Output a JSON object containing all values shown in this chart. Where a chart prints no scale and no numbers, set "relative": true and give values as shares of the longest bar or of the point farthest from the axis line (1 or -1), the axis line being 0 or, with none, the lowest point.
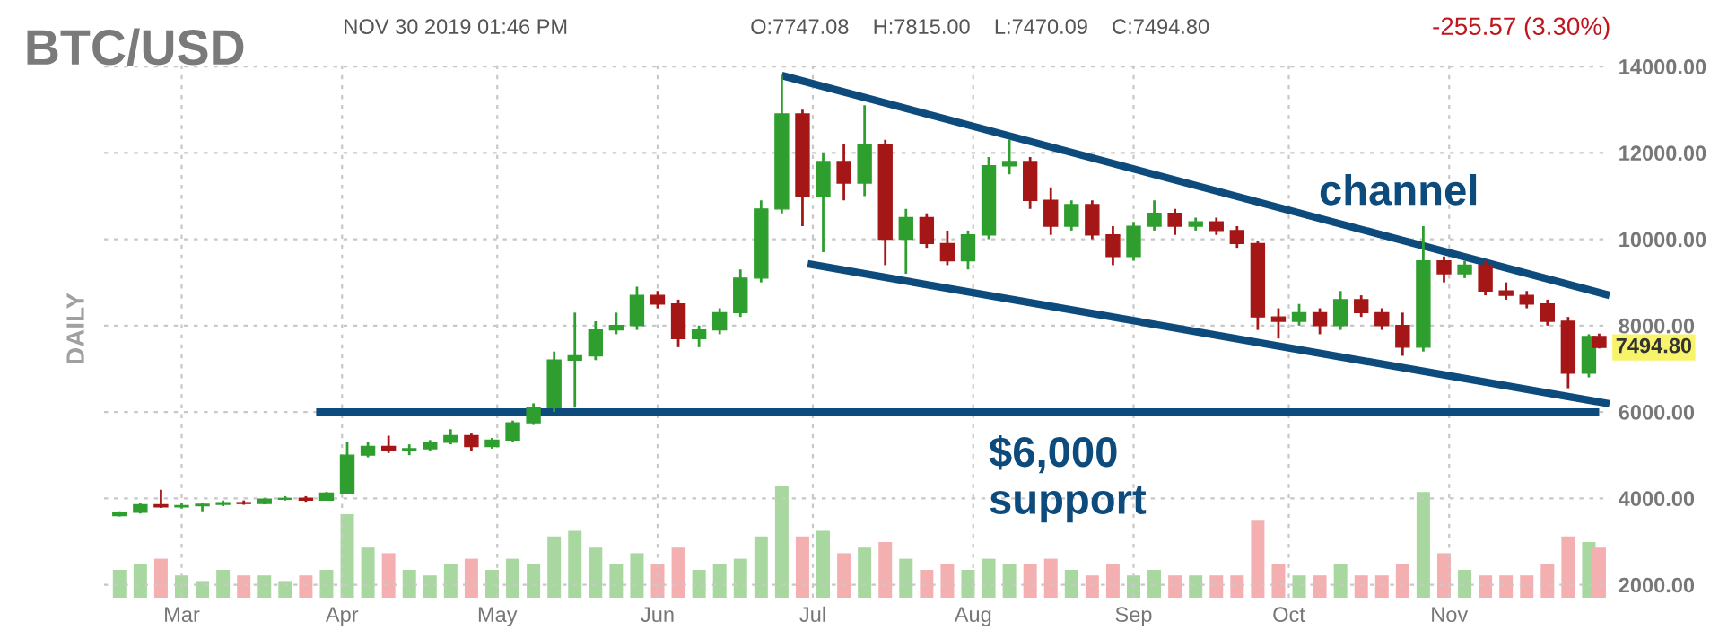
{
  "chart_data": [
    {
      "type": "candlestick",
      "title": "BTC/USD",
      "ylabel": "DAILY",
      "annotations": [
        "NOV 30 2019 01:46 PM",
        "O:7747.08    H:7815.00    L:7470.09    C:7494.80",
        "-255.57 (3.30%)",
        "channel",
        "$6,000\nsupport",
        {
          "text": "7494.80",
          "x": "2019-11-30",
          "y": 7494.8
        }
      ],
      "xlim": [
        "2019-02-14",
        "2019-12-02"
      ],
      "xticks": [
        {
          "value": "2019-03-01",
          "label": "Mar"
        },
        {
          "value": "2019-04-01",
          "label": "Apr"
        },
        {
          "value": "2019-05-01",
          "label": "May"
        },
        {
          "value": "2019-06-01",
          "label": "Jun"
        },
        {
          "value": "2019-07-01",
          "label": "Jul"
        },
        {
          "value": "2019-08-01",
          "label": "Aug"
        },
        {
          "value": "2019-09-01",
          "label": "Sep"
        },
        {
          "value": "2019-10-01",
          "label": "Oct"
        },
        {
          "value": "2019-11-01",
          "label": "Nov"
        }
      ],
      "ylim": [
        1700,
        14150
      ],
      "yticks": [
        {
          "value": 2000,
          "label": "2000.00"
        },
        {
          "value": 4000,
          "label": "4000.00"
        },
        {
          "value": 6000,
          "label": "6000.00"
        },
        {
          "value": 8000,
          "label": "8000.00"
        },
        {
          "value": 10000,
          "label": "10000.00"
        },
        {
          "value": 12000,
          "label": "12000.00"
        },
        {
          "value": 14000,
          "label": "14000.00"
        }
      ],
      "grid": true,
      "series": [
        {
          "type": "candlestick",
          "x": [
            "2019-02-17",
            "2019-02-21",
            "2019-02-25",
            "2019-03-01",
            "2019-03-05",
            "2019-03-09",
            "2019-03-13",
            "2019-03-17",
            "2019-03-21",
            "2019-03-25",
            "2019-03-29",
            "2019-04-02",
            "2019-04-06",
            "2019-04-10",
            "2019-04-14",
            "2019-04-18",
            "2019-04-22",
            "2019-04-26",
            "2019-04-30",
            "2019-05-04",
            "2019-05-08",
            "2019-05-12",
            "2019-05-16",
            "2019-05-20",
            "2019-05-24",
            "2019-05-28",
            "2019-06-01",
            "2019-06-05",
            "2019-06-09",
            "2019-06-13",
            "2019-06-17",
            "2019-06-21",
            "2019-06-25",
            "2019-06-29",
            "2019-07-03",
            "2019-07-07",
            "2019-07-11",
            "2019-07-15",
            "2019-07-19",
            "2019-07-23",
            "2019-07-27",
            "2019-07-31",
            "2019-08-04",
            "2019-08-08",
            "2019-08-12",
            "2019-08-16",
            "2019-08-20",
            "2019-08-24",
            "2019-08-28",
            "2019-09-01",
            "2019-09-05",
            "2019-09-09",
            "2019-09-13",
            "2019-09-17",
            "2019-09-21",
            "2019-09-25",
            "2019-09-29",
            "2019-10-03",
            "2019-10-07",
            "2019-10-11",
            "2019-10-15",
            "2019-10-19",
            "2019-10-23",
            "2019-10-27",
            "2019-10-31",
            "2019-11-04",
            "2019-11-08",
            "2019-11-12",
            "2019-11-16",
            "2019-11-20",
            "2019-11-24",
            "2019-11-28",
            "2019-11-30"
          ],
          "ohlc": [
            [
              3600,
              3700,
              3580,
              3680
            ],
            [
              3680,
              3900,
              3650,
              3850
            ],
            [
              3850,
              4200,
              3780,
              3800
            ],
            [
              3800,
              3880,
              3760,
              3830
            ],
            [
              3830,
              3900,
              3700,
              3860
            ],
            [
              3860,
              3950,
              3820,
              3900
            ],
            [
              3900,
              3950,
              3850,
              3880
            ],
            [
              3880,
              4000,
              3860,
              3980
            ],
            [
              3980,
              4050,
              3950,
              4000
            ],
            [
              4000,
              4050,
              3920,
              3960
            ],
            [
              3960,
              4150,
              3950,
              4120
            ],
            [
              4120,
              5300,
              4100,
              5000
            ],
            [
              5000,
              5300,
              4950,
              5200
            ],
            [
              5200,
              5450,
              5050,
              5100
            ],
            [
              5100,
              5250,
              5000,
              5150
            ],
            [
              5150,
              5350,
              5100,
              5300
            ],
            [
              5300,
              5600,
              5250,
              5450
            ],
            [
              5450,
              5500,
              5100,
              5200
            ],
            [
              5200,
              5400,
              5150,
              5350
            ],
            [
              5350,
              5800,
              5300,
              5750
            ],
            [
              5750,
              6200,
              5700,
              6100
            ],
            [
              6100,
              7400,
              6000,
              7200
            ],
            [
              7200,
              8300,
              6100,
              7300
            ],
            [
              7300,
              8100,
              7200,
              7900
            ],
            [
              7900,
              8300,
              7800,
              8000
            ],
            [
              8000,
              8900,
              7900,
              8700
            ],
            [
              8700,
              8800,
              8400,
              8500
            ],
            [
              8500,
              8600,
              7500,
              7700
            ],
            [
              7700,
              8000,
              7500,
              7900
            ],
            [
              7900,
              8400,
              7800,
              8300
            ],
            [
              8300,
              9300,
              8200,
              9100
            ],
            [
              9100,
              10900,
              9000,
              10700
            ],
            [
              10700,
              13800,
              10600,
              12900
            ],
            [
              12900,
              13000,
              10300,
              11000
            ],
            [
              11000,
              12000,
              9700,
              11800
            ],
            [
              11800,
              12200,
              10900,
              11300
            ],
            [
              11300,
              13100,
              11000,
              12200
            ],
            [
              12200,
              12300,
              9400,
              10000
            ],
            [
              10000,
              10700,
              9200,
              10500
            ],
            [
              10500,
              10600,
              9800,
              9900
            ],
            [
              9900,
              10200,
              9400,
              9500
            ],
            [
              9500,
              10200,
              9300,
              10100
            ],
            [
              10100,
              11900,
              10000,
              11700
            ],
            [
              11700,
              12300,
              11500,
              11800
            ],
            [
              11800,
              11900,
              10700,
              10900
            ],
            [
              10900,
              11200,
              10100,
              10300
            ],
            [
              10300,
              10900,
              10200,
              10800
            ],
            [
              10800,
              10900,
              10000,
              10100
            ],
            [
              10100,
              10300,
              9400,
              9600
            ],
            [
              9600,
              10400,
              9500,
              10300
            ],
            [
              10300,
              10900,
              10200,
              10600
            ],
            [
              10600,
              10700,
              10100,
              10300
            ],
            [
              10300,
              10500,
              10200,
              10400
            ],
            [
              10400,
              10500,
              10100,
              10200
            ],
            [
              10200,
              10300,
              9800,
              9900
            ],
            [
              9900,
              9950,
              7900,
              8200
            ],
            [
              8200,
              8400,
              7700,
              8100
            ],
            [
              8100,
              8500,
              8000,
              8300
            ],
            [
              8300,
              8400,
              7800,
              8000
            ],
            [
              8000,
              8800,
              7900,
              8600
            ],
            [
              8600,
              8700,
              8200,
              8300
            ],
            [
              8300,
              8400,
              7900,
              8000
            ],
            [
              8000,
              8300,
              7300,
              7500
            ],
            [
              7500,
              10300,
              7400,
              9500
            ],
            [
              9500,
              9600,
              9000,
              9200
            ],
            [
              9200,
              9500,
              9100,
              9400
            ],
            [
              9400,
              9500,
              8700,
              8800
            ],
            [
              8800,
              9000,
              8600,
              8700
            ],
            [
              8700,
              8800,
              8400,
              8500
            ],
            [
              8500,
              8600,
              8000,
              8100
            ],
            [
              8100,
              8200,
              6550,
              6900
            ],
            [
              6900,
              7800,
              6800,
              7747.08
            ],
            [
              7747.08,
              7815.0,
              7470.09,
              7494.8
            ]
          ],
          "colors": [
            "#2e9f2e",
            "#2e9f2e",
            "#a51717",
            "#2e9f2e",
            "#2e9f2e",
            "#2e9f2e",
            "#a51717",
            "#2e9f2e",
            "#2e9f2e",
            "#a51717",
            "#2e9f2e",
            "#2e9f2e",
            "#2e9f2e",
            "#a51717",
            "#2e9f2e",
            "#2e9f2e",
            "#2e9f2e",
            "#a51717",
            "#2e9f2e",
            "#2e9f2e",
            "#2e9f2e",
            "#2e9f2e",
            "#2e9f2e",
            "#2e9f2e",
            "#2e9f2e",
            "#2e9f2e",
            "#a51717",
            "#a51717",
            "#2e9f2e",
            "#2e9f2e",
            "#2e9f2e",
            "#2e9f2e",
            "#2e9f2e",
            "#a51717",
            "#2e9f2e",
            "#a51717",
            "#2e9f2e",
            "#a51717",
            "#2e9f2e",
            "#a51717",
            "#a51717",
            "#2e9f2e",
            "#2e9f2e",
            "#2e9f2e",
            "#a51717",
            "#a51717",
            "#2e9f2e",
            "#a51717",
            "#a51717",
            "#2e9f2e",
            "#2e9f2e",
            "#a51717",
            "#2e9f2e",
            "#a51717",
            "#a51717",
            "#a51717",
            "#a51717",
            "#2e9f2e",
            "#a51717",
            "#2e9f2e",
            "#a51717",
            "#a51717",
            "#a51717",
            "#2e9f2e",
            "#a51717",
            "#2e9f2e",
            "#a51717",
            "#a51717",
            "#a51717",
            "#a51717",
            "#a51717",
            "#2e9f2e",
            "#a51717"
          ]
        },
        {
          "type": "line",
          "color": "#0d4b7d",
          "x": [
            "2019-03-27",
            "2019-11-30"
          ],
          "values": [
            6000,
            6000
          ]
        },
        {
          "type": "line",
          "color": "#0d4b7d",
          "x": [
            "2019-06-25",
            "2019-12-02"
          ],
          "values": [
            13790,
            8700
          ]
        },
        {
          "type": "line",
          "color": "#0d4b7d",
          "x": [
            "2019-06-30",
            "2019-12-02"
          ],
          "values": [
            9430,
            6190
          ]
        }
      ]
    },
    {
      "type": "bar",
      "relative": true,
      "tick_labels": false,
      "xlim": [
        "2019-02-14",
        "2019-12-02"
      ],
      "x": [
        "2019-02-17",
        "2019-02-21",
        "2019-02-25",
        "2019-03-01",
        "2019-03-05",
        "2019-03-09",
        "2019-03-13",
        "2019-03-17",
        "2019-03-21",
        "2019-03-25",
        "2019-03-29",
        "2019-04-02",
        "2019-04-06",
        "2019-04-10",
        "2019-04-14",
        "2019-04-18",
        "2019-04-22",
        "2019-04-26",
        "2019-04-30",
        "2019-05-04",
        "2019-05-08",
        "2019-05-12",
        "2019-05-16",
        "2019-05-20",
        "2019-05-24",
        "2019-05-28",
        "2019-06-01",
        "2019-06-05",
        "2019-06-09",
        "2019-06-13",
        "2019-06-17",
        "2019-06-21",
        "2019-06-25",
        "2019-06-29",
        "2019-07-03",
        "2019-07-07",
        "2019-07-11",
        "2019-07-15",
        "2019-07-19",
        "2019-07-23",
        "2019-07-27",
        "2019-07-31",
        "2019-08-04",
        "2019-08-08",
        "2019-08-12",
        "2019-08-16",
        "2019-08-20",
        "2019-08-24",
        "2019-08-28",
        "2019-09-01",
        "2019-09-05",
        "2019-09-09",
        "2019-09-13",
        "2019-09-17",
        "2019-09-21",
        "2019-09-25",
        "2019-09-29",
        "2019-10-03",
        "2019-10-07",
        "2019-10-11",
        "2019-10-15",
        "2019-10-19",
        "2019-10-23",
        "2019-10-27",
        "2019-10-31",
        "2019-11-04",
        "2019-11-08",
        "2019-11-12",
        "2019-11-16",
        "2019-11-20",
        "2019-11-24",
        "2019-11-28",
        "2019-11-30"
      ],
      "values": [
        0.25,
        0.3,
        0.35,
        0.2,
        0.15,
        0.25,
        0.2,
        0.2,
        0.15,
        0.2,
        0.25,
        0.75,
        0.45,
        0.4,
        0.25,
        0.2,
        0.3,
        0.35,
        0.25,
        0.35,
        0.3,
        0.55,
        0.6,
        0.45,
        0.3,
        0.4,
        0.3,
        0.45,
        0.25,
        0.3,
        0.35,
        0.55,
        1.0,
        0.55,
        0.6,
        0.4,
        0.45,
        0.5,
        0.35,
        0.25,
        0.3,
        0.25,
        0.35,
        0.3,
        0.3,
        0.35,
        0.25,
        0.2,
        0.3,
        0.2,
        0.25,
        0.2,
        0.2,
        0.2,
        0.2,
        0.7,
        0.3,
        0.2,
        0.2,
        0.3,
        0.2,
        0.2,
        0.3,
        0.95,
        0.4,
        0.25,
        0.2,
        0.2,
        0.2,
        0.3,
        0.55,
        0.5,
        0.45
      ],
      "colors": [
        "#a8d8a0",
        "#a8d8a0",
        "#f4b0b0",
        "#a8d8a0",
        "#a8d8a0",
        "#a8d8a0",
        "#f4b0b0",
        "#a8d8a0",
        "#a8d8a0",
        "#f4b0b0",
        "#a8d8a0",
        "#a8d8a0",
        "#a8d8a0",
        "#f4b0b0",
        "#a8d8a0",
        "#a8d8a0",
        "#a8d8a0",
        "#f4b0b0",
        "#a8d8a0",
        "#a8d8a0",
        "#a8d8a0",
        "#a8d8a0",
        "#a8d8a0",
        "#a8d8a0",
        "#a8d8a0",
        "#a8d8a0",
        "#f4b0b0",
        "#f4b0b0",
        "#a8d8a0",
        "#a8d8a0",
        "#a8d8a0",
        "#a8d8a0",
        "#a8d8a0",
        "#f4b0b0",
        "#a8d8a0",
        "#f4b0b0",
        "#a8d8a0",
        "#f4b0b0",
        "#a8d8a0",
        "#f4b0b0",
        "#f4b0b0",
        "#a8d8a0",
        "#a8d8a0",
        "#a8d8a0",
        "#f4b0b0",
        "#f4b0b0",
        "#a8d8a0",
        "#f4b0b0",
        "#f4b0b0",
        "#a8d8a0",
        "#a8d8a0",
        "#f4b0b0",
        "#a8d8a0",
        "#f4b0b0",
        "#f4b0b0",
        "#f4b0b0",
        "#f4b0b0",
        "#a8d8a0",
        "#f4b0b0",
        "#a8d8a0",
        "#f4b0b0",
        "#f4b0b0",
        "#f4b0b0",
        "#a8d8a0",
        "#f4b0b0",
        "#a8d8a0",
        "#f4b0b0",
        "#f4b0b0",
        "#f4b0b0",
        "#f4b0b0",
        "#f4b0b0",
        "#a8d8a0",
        "#f4b0b0"
      ]
    }
  ]
}
